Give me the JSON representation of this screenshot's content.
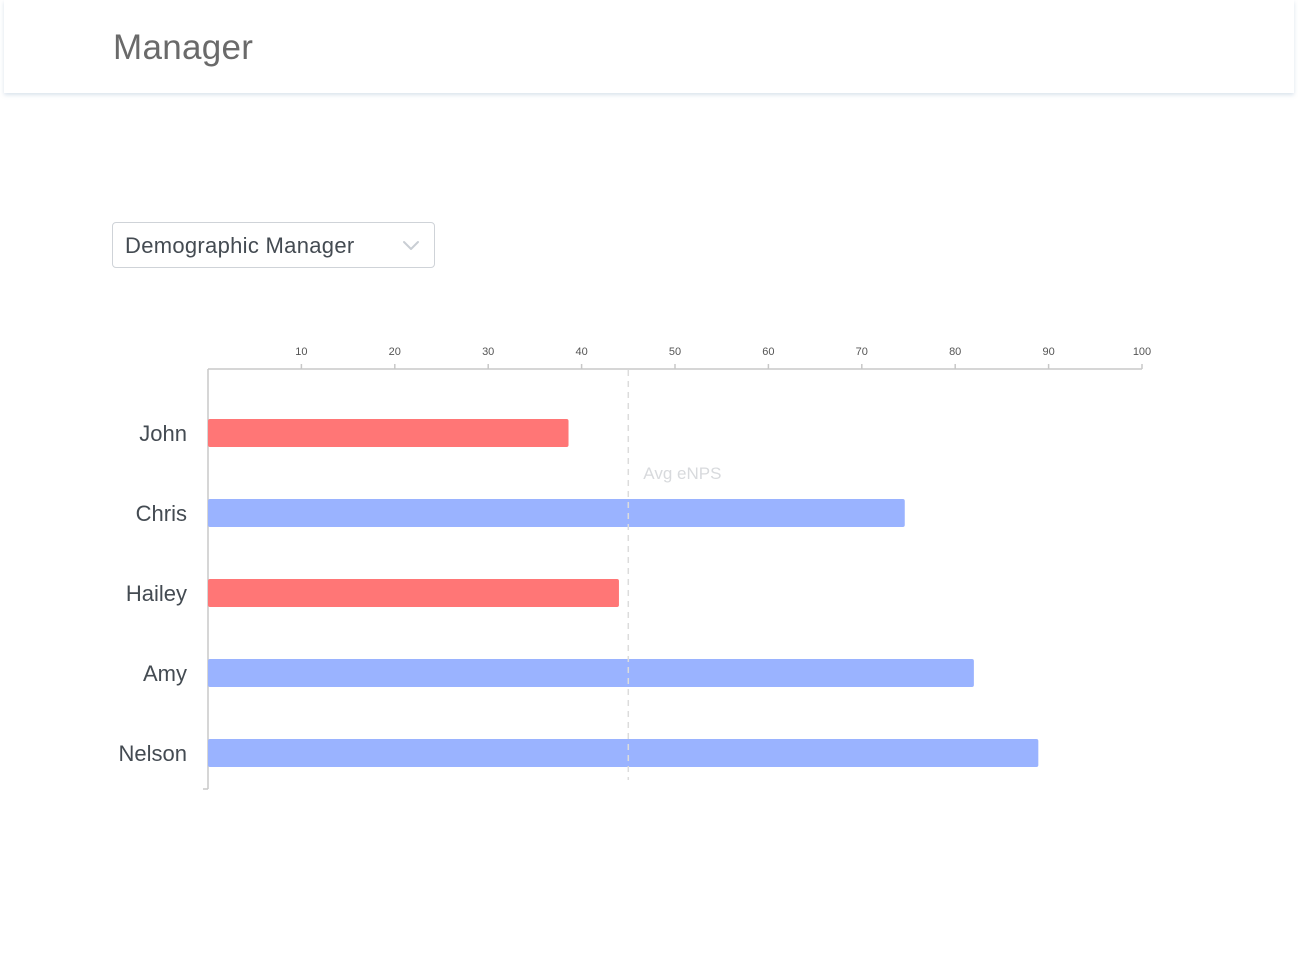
{
  "header": {
    "title": "Manager"
  },
  "filter": {
    "selected": "Demographic Manager"
  },
  "chart_data": {
    "type": "bar",
    "orientation": "horizontal",
    "categories": [
      "John",
      "Chris",
      "Hailey",
      "Amy",
      "Nelson"
    ],
    "values": [
      38.6,
      74.6,
      44.0,
      82.0,
      88.9
    ],
    "bar_colors": [
      "#ff7676",
      "#9ab3ff",
      "#ff7676",
      "#9ab3ff",
      "#9ab3ff"
    ],
    "x_ticks": [
      10,
      20,
      30,
      40,
      50,
      60,
      70,
      80,
      90,
      100
    ],
    "xlim": [
      0,
      100
    ],
    "axis_position": "top",
    "reference_line": {
      "label": "Avg eNPS",
      "value": 45
    },
    "grid": false
  }
}
